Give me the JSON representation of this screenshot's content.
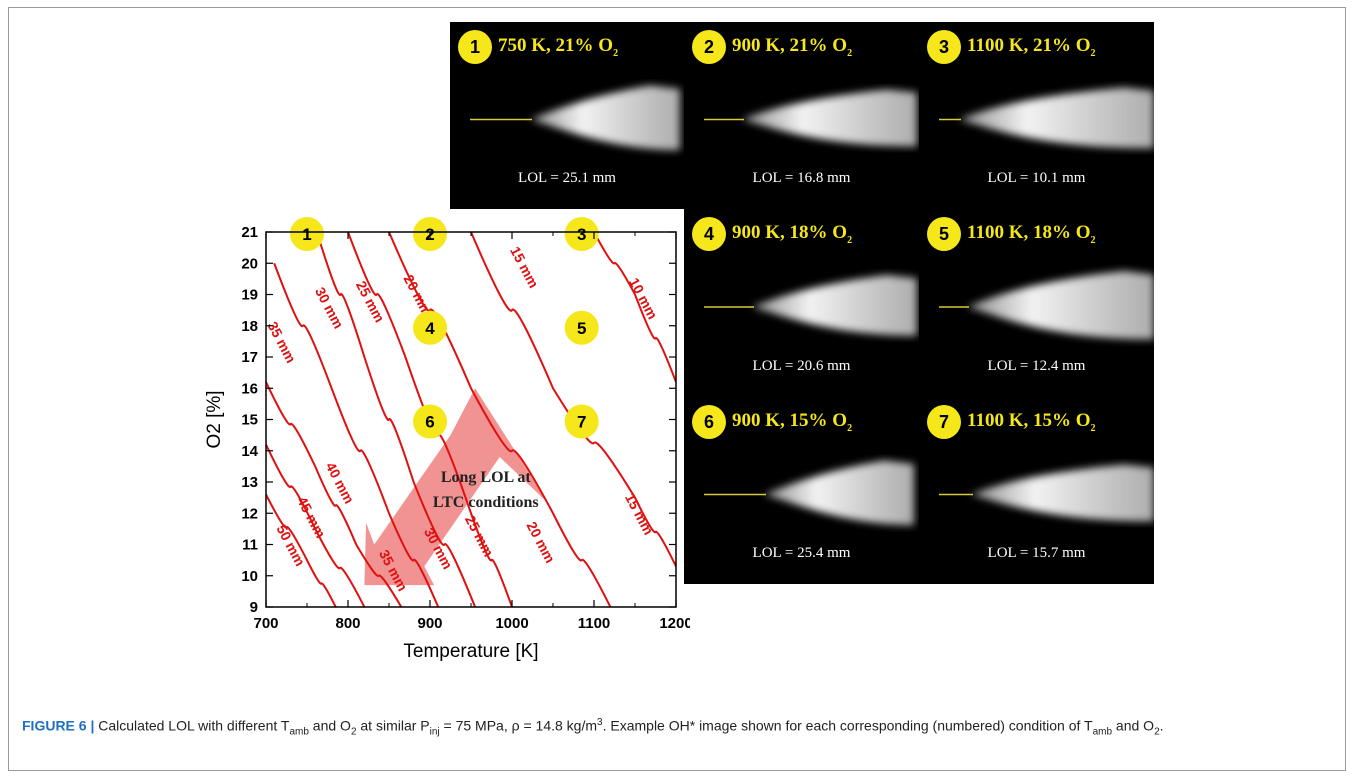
{
  "panels": [
    {
      "num": "1",
      "condition": "750 K, 21% O",
      "condition_sub": "2",
      "lol": "LOL = 25.1 mm"
    },
    {
      "num": "2",
      "condition": "900 K, 21% O",
      "condition_sub": "2",
      "lol": "LOL = 16.8 mm"
    },
    {
      "num": "3",
      "condition": "1100 K, 21% O",
      "condition_sub": "2",
      "lol": "LOL = 10.1 mm"
    },
    {
      "num": "4",
      "condition": "900 K, 18% O",
      "condition_sub": "2",
      "lol": "LOL = 20.6 mm"
    },
    {
      "num": "5",
      "condition": "1100 K, 18% O",
      "condition_sub": "2",
      "lol": "LOL = 12.4 mm"
    },
    {
      "num": "6",
      "condition": "900 K, 15% O",
      "condition_sub": "2",
      "lol": "LOL =  25.4 mm"
    },
    {
      "num": "7",
      "condition": "1100 K, 15% O",
      "condition_sub": "2",
      "lol": "LOL = 15.7 mm"
    }
  ],
  "chart_data": {
    "type": "line",
    "xlabel": "Temperature [K]",
    "ylabel": "O2 [%]",
    "xlim": [
      700,
      1200
    ],
    "ylim": [
      9,
      21
    ],
    "xticks": [
      700,
      800,
      900,
      1000,
      1100,
      1200
    ],
    "yticks": [
      9,
      10,
      11,
      12,
      13,
      14,
      15,
      16,
      17,
      18,
      19,
      20,
      21
    ],
    "series": [
      {
        "name": "10 mm",
        "points": [
          [
            1100,
            21
          ],
          [
            1150,
            19
          ],
          [
            1200,
            16.2
          ]
        ]
      },
      {
        "name": "15 mm",
        "points": [
          [
            950,
            21
          ],
          [
            1050,
            16
          ],
          [
            1150,
            12.5
          ],
          [
            1200,
            10.3
          ]
        ]
      },
      {
        "name": "20 mm",
        "points": [
          [
            850,
            21
          ],
          [
            950,
            16
          ],
          [
            1050,
            12
          ],
          [
            1120,
            9
          ]
        ]
      },
      {
        "name": "25 mm",
        "points": [
          [
            800,
            21
          ],
          [
            870,
            17
          ],
          [
            950,
            12
          ],
          [
            1000,
            9
          ]
        ]
      },
      {
        "name": "30 mm",
        "points": [
          [
            762,
            21
          ],
          [
            820,
            17
          ],
          [
            880,
            13
          ],
          [
            955,
            9
          ]
        ]
      },
      {
        "name": "35 mm",
        "points": [
          [
            710,
            20
          ],
          [
            780,
            16
          ],
          [
            850,
            12
          ],
          [
            910,
            9
          ]
        ]
      },
      {
        "name": "40 mm",
        "points": [
          [
            700,
            16.2
          ],
          [
            760,
            13.5
          ],
          [
            810,
            11
          ],
          [
            865,
            9
          ]
        ]
      },
      {
        "name": "45 mm",
        "points": [
          [
            700,
            14.2
          ],
          [
            760,
            11.5
          ],
          [
            820,
            9
          ]
        ]
      },
      {
        "name": "50 mm",
        "points": [
          [
            700,
            12.6
          ],
          [
            750,
            10.5
          ],
          [
            785,
            9
          ]
        ]
      }
    ],
    "contour_labels": [
      {
        "text": "10 mm",
        "x": 1155,
        "y": 18.8
      },
      {
        "text": "15 mm",
        "x": 1010,
        "y": 19.8
      },
      {
        "text": "20 mm",
        "x": 880,
        "y": 18.9
      },
      {
        "text": "25 mm",
        "x": 822,
        "y": 18.7
      },
      {
        "text": "30 mm",
        "x": 772,
        "y": 18.5
      },
      {
        "text": "35 mm",
        "x": 714,
        "y": 17.4
      },
      {
        "text": "15 mm",
        "x": 1150,
        "y": 11.9
      },
      {
        "text": "20 mm",
        "x": 1030,
        "y": 11.0
      },
      {
        "text": "25 mm",
        "x": 955,
        "y": 11.2
      },
      {
        "text": "30 mm",
        "x": 905,
        "y": 10.8
      },
      {
        "text": "35 mm",
        "x": 850,
        "y": 10.1
      },
      {
        "text": "40 mm",
        "x": 785,
        "y": 12.9
      },
      {
        "text": "45 mm",
        "x": 750,
        "y": 11.8
      },
      {
        "text": "50 mm",
        "x": 725,
        "y": 10.9
      }
    ],
    "markers": [
      {
        "label": "1",
        "x": 750,
        "y": 21
      },
      {
        "label": "2",
        "x": 900,
        "y": 21
      },
      {
        "label": "3",
        "x": 1085,
        "y": 21
      },
      {
        "label": "4",
        "x": 900,
        "y": 18
      },
      {
        "label": "5",
        "x": 1085,
        "y": 18
      },
      {
        "label": "6",
        "x": 900,
        "y": 15
      },
      {
        "label": "7",
        "x": 1085,
        "y": 15
      }
    ],
    "annotation": {
      "line1": "Long LOL at",
      "line2": "LTC conditions"
    },
    "contour_color": "#e01010",
    "marker_color": "#f5e71a"
  },
  "caption": {
    "figure": "FIGURE 6 |",
    "t1": " Calculated LOL with different T",
    "t1_sub": "amb",
    "t2": " and O",
    "t2_sub": "2",
    "t3": " at similar P",
    "t3_sub": "inj",
    "t4": " = 75 MPa, ρ = 14.8 kg/m",
    "t4_sup": "3",
    "t5": ". Example OH* image shown for each corresponding (numbered) condition of T",
    "t5_sub": "amb",
    "t6": " and O",
    "t6_sub": "2",
    "t7": "."
  }
}
